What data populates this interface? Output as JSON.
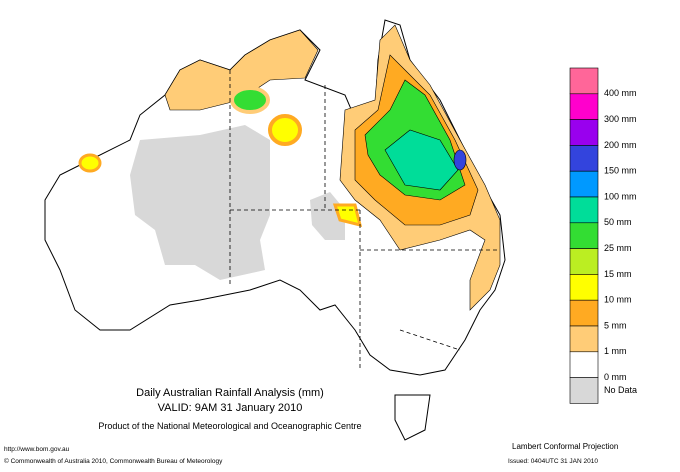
{
  "title": "Daily Australian Rainfall Analysis (mm)",
  "valid": "VALID: 9AM 31 January 2010",
  "product": "Product of the National Meteorological and Oceanographic Centre",
  "url": "http://www.bom.gov.au",
  "copyright": "© Commonwealth of Australia 2010, Commonwealth Bureau of Meteorology",
  "projection": "Lambert Conformal Projection",
  "issued": "Issued: 0404UTC 31 JAN 2010",
  "legend": {
    "items": [
      {
        "label": "400 mm",
        "color": "#ff6699"
      },
      {
        "label": "300 mm",
        "color": "#ff00cc"
      },
      {
        "label": "200 mm",
        "color": "#9900ee"
      },
      {
        "label": "150 mm",
        "color": "#3344dd"
      },
      {
        "label": "100 mm",
        "color": "#0099ff"
      },
      {
        "label": "50 mm",
        "color": "#00dd99"
      },
      {
        "label": "25 mm",
        "color": "#33dd33"
      },
      {
        "label": "15 mm",
        "color": "#bbee22"
      },
      {
        "label": "10 mm",
        "color": "#ffff00"
      },
      {
        "label": "5 mm",
        "color": "#ffaa22"
      },
      {
        "label": "1 mm",
        "color": "#ffcc77"
      },
      {
        "label": "0 mm",
        "color": "#ffffff"
      }
    ],
    "no_data": {
      "label": "No Data",
      "color": "#d8d8d8"
    }
  }
}
